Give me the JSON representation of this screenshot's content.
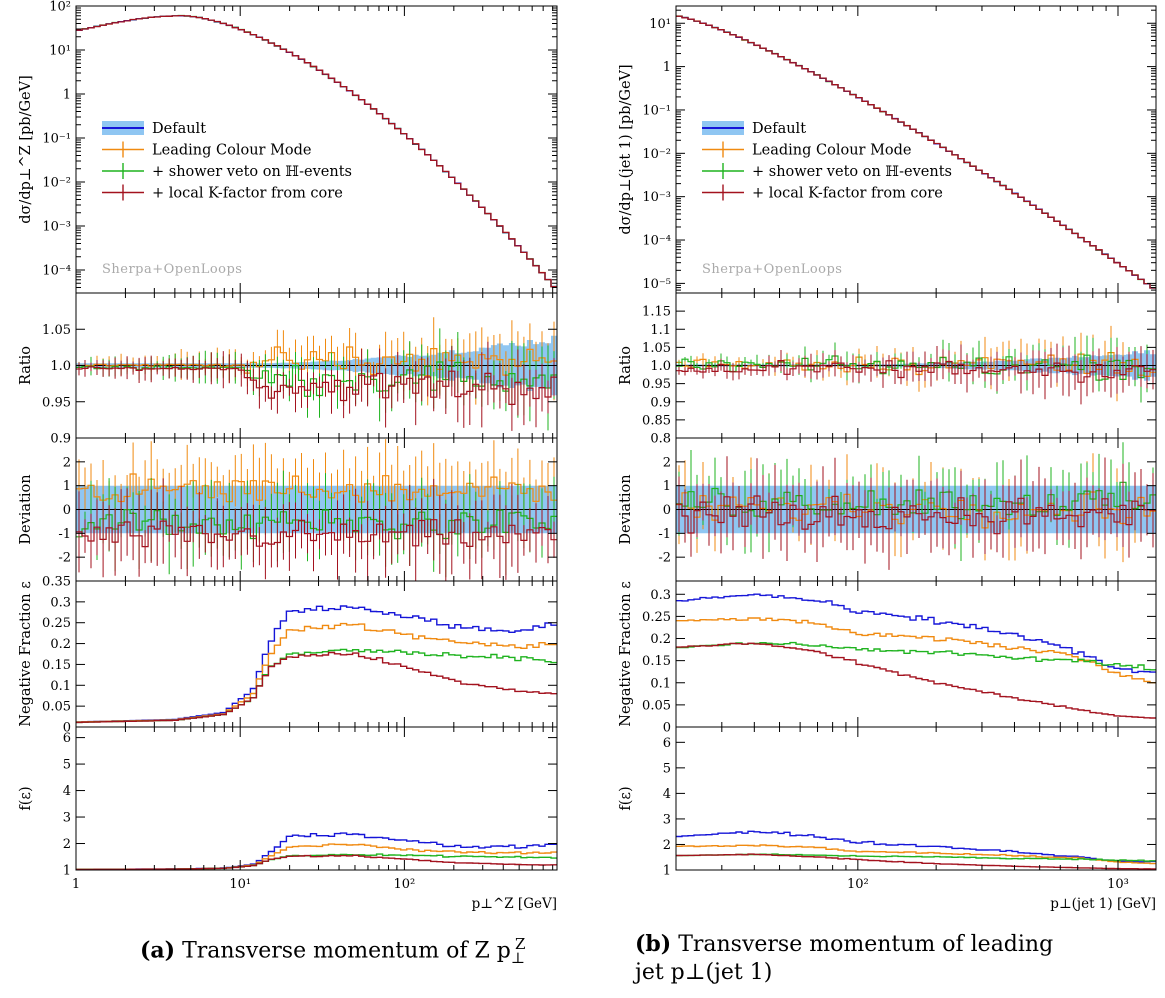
{
  "colors": {
    "default_band": "#8fc6f2",
    "default_line": "#1515d8",
    "leading_colour": "#f08a10",
    "shower_veto": "#1fb31f",
    "local_k": "#a3121e",
    "watermark": "#aaaaaa"
  },
  "legend": [
    {
      "key": "default",
      "label": "Default"
    },
    {
      "key": "lcm",
      "label": "Leading Colour Mode"
    },
    {
      "key": "veto",
      "label": "+ shower veto on ℍ-events"
    },
    {
      "key": "lk",
      "label": "+ local K-factor from core"
    }
  ],
  "watermark": "Sherpa+OpenLoops",
  "captions": {
    "a_tag": "(a)",
    "a_text": "Transverse momentum of Z p",
    "a_sup": "Z",
    "a_sub": "⊥",
    "b_tag": "(b)",
    "b_text1": "Transverse momentum of leading",
    "b_text2": "jet p⊥(jet 1)"
  },
  "chart_data": [
    {
      "id": "a",
      "type": "line",
      "title": "",
      "x_scale": "log",
      "xlim": [
        1,
        850
      ],
      "x_ticks": [
        1,
        10,
        100
      ],
      "x_tick_labels": [
        "1",
        "10¹",
        "10²"
      ],
      "xlabel": "p⊥^Z [GeV]",
      "panels": {
        "main": {
          "ylabel": "dσ/dp⊥^Z [pb/GeV]",
          "y_scale": "log",
          "ylim": [
            3e-05,
            100
          ],
          "ticks": [
            {
              "v": 100,
              "t": "10²"
            },
            {
              "v": 10,
              "t": "10¹"
            },
            {
              "v": 1,
              "t": "1"
            },
            {
              "v": 0.1,
              "t": "10⁻¹"
            },
            {
              "v": 0.01,
              "t": "10⁻²"
            },
            {
              "v": 0.001,
              "t": "10⁻³"
            },
            {
              "v": 0.0001,
              "t": "10⁻⁴"
            }
          ],
          "shape": {
            "kind": "peak",
            "start": 27,
            "peak_x": 4.5,
            "peak": 60,
            "end": 3.5e-05
          }
        },
        "ratio": {
          "ylabel": "Ratio",
          "y_scale": "linear",
          "ylim": [
            0.9,
            1.1
          ],
          "ref": 1.0,
          "ticks": [
            {
              "v": 1.05,
              "t": "1.05"
            },
            {
              "v": 1.0,
              "t": "1.0"
            },
            {
              "v": 0.95,
              "t": "0.95"
            },
            {
              "v": 0.9,
              "t": "0.9"
            }
          ],
          "offsets": {
            "lcm": 0.005,
            "veto": -0.018,
            "lk": -0.028
          },
          "noise": 0.025
        },
        "dev": {
          "ylabel": "Deviation",
          "y_scale": "linear",
          "ylim": [
            -3,
            3
          ],
          "ref": 0,
          "ticks": [
            {
              "v": 2,
              "t": "2"
            },
            {
              "v": 1,
              "t": "1"
            },
            {
              "v": 0,
              "t": "0"
            },
            {
              "v": -1,
              "t": "-1"
            },
            {
              "v": -2,
              "t": "-2"
            }
          ],
          "offsets": {
            "lcm": 0.8,
            "veto": -0.6,
            "lk": -1.1
          },
          "noise": 0.9
        },
        "negfrac": {
          "ylabel": "Negative Fraction ε",
          "y_scale": "linear",
          "ylim": [
            0,
            0.35
          ],
          "ticks": [
            {
              "v": 0.35,
              "t": "0.35"
            },
            {
              "v": 0.3,
              "t": "0.3"
            },
            {
              "v": 0.25,
              "t": "0.25"
            },
            {
              "v": 0.2,
              "t": "0.2"
            },
            {
              "v": 0.15,
              "t": "0.15"
            },
            {
              "v": 0.1,
              "t": "0.1"
            },
            {
              "v": 0.05,
              "t": "0.05"
            },
            {
              "v": 0,
              "t": "0"
            }
          ],
          "series": {
            "default": [
              [
                1,
                0.012
              ],
              [
                4,
                0.018
              ],
              [
                8,
                0.035
              ],
              [
                12,
                0.09
              ],
              [
                15,
                0.2
              ],
              [
                20,
                0.28
              ],
              [
                50,
                0.29
              ],
              [
                100,
                0.265
              ],
              [
                200,
                0.24
              ],
              [
                500,
                0.23
              ],
              [
                800,
                0.25
              ]
            ],
            "lcm": [
              [
                1,
                0.012
              ],
              [
                4,
                0.017
              ],
              [
                8,
                0.032
              ],
              [
                12,
                0.08
              ],
              [
                15,
                0.17
              ],
              [
                20,
                0.235
              ],
              [
                50,
                0.245
              ],
              [
                100,
                0.22
              ],
              [
                200,
                0.205
              ],
              [
                500,
                0.195
              ],
              [
                800,
                0.2
              ]
            ],
            "veto": [
              [
                1,
                0.011
              ],
              [
                4,
                0.016
              ],
              [
                8,
                0.03
              ],
              [
                12,
                0.07
              ],
              [
                15,
                0.14
              ],
              [
                20,
                0.175
              ],
              [
                50,
                0.185
              ],
              [
                100,
                0.18
              ],
              [
                200,
                0.17
              ],
              [
                500,
                0.165
              ],
              [
                800,
                0.16
              ]
            ],
            "lk": [
              [
                1,
                0.011
              ],
              [
                4,
                0.016
              ],
              [
                8,
                0.03
              ],
              [
                12,
                0.07
              ],
              [
                15,
                0.14
              ],
              [
                20,
                0.17
              ],
              [
                50,
                0.175
              ],
              [
                100,
                0.145
              ],
              [
                200,
                0.11
              ],
              [
                500,
                0.085
              ],
              [
                800,
                0.08
              ]
            ]
          }
        },
        "feps": {
          "ylabel": "f(ε)",
          "y_scale": "linear",
          "ylim": [
            1,
            6.4
          ],
          "ticks": [
            {
              "v": 6,
              "t": "6"
            },
            {
              "v": 5,
              "t": "5"
            },
            {
              "v": 4,
              "t": "4"
            },
            {
              "v": 3,
              "t": "3"
            },
            {
              "v": 2,
              "t": "2"
            },
            {
              "v": 1,
              "t": "1"
            }
          ]
        }
      }
    },
    {
      "id": "b",
      "type": "line",
      "title": "",
      "x_scale": "log",
      "xlim": [
        20,
        1400
      ],
      "x_ticks": [
        100,
        1000
      ],
      "x_tick_labels": [
        "10²",
        "10³"
      ],
      "xlabel": "p⊥(jet 1) [GeV]",
      "panels": {
        "main": {
          "ylabel": "dσ/dp⊥(jet 1) [pb/GeV]",
          "y_scale": "log",
          "ylim": [
            6e-06,
            25
          ],
          "ticks": [
            {
              "v": 10,
              "t": "10¹"
            },
            {
              "v": 1,
              "t": "1"
            },
            {
              "v": 0.1,
              "t": "10⁻¹"
            },
            {
              "v": 0.01,
              "t": "10⁻²"
            },
            {
              "v": 0.001,
              "t": "10⁻³"
            },
            {
              "v": 0.0001,
              "t": "10⁻⁴"
            },
            {
              "v": 1e-05,
              "t": "10⁻⁵"
            }
          ],
          "shape": {
            "kind": "fall",
            "start": 15,
            "end": 7e-06
          }
        },
        "ratio": {
          "ylabel": "Ratio",
          "y_scale": "linear",
          "ylim": [
            0.8,
            1.2
          ],
          "ref": 1.0,
          "ticks": [
            {
              "v": 1.15,
              "t": "1.15"
            },
            {
              "v": 1.1,
              "t": "1.1"
            },
            {
              "v": 1.05,
              "t": "1.05"
            },
            {
              "v": 1.0,
              "t": "1.0"
            },
            {
              "v": 0.95,
              "t": "0.95"
            },
            {
              "v": 0.9,
              "t": "0.9"
            },
            {
              "v": 0.85,
              "t": "0.85"
            },
            {
              "v": 0.8,
              "t": "0.8"
            }
          ],
          "offsets": {
            "lcm": 0.005,
            "veto": 0.0,
            "lk": -0.01
          },
          "noise": 0.035
        },
        "dev": {
          "ylabel": "Deviation",
          "y_scale": "linear",
          "ylim": [
            -3,
            3
          ],
          "ref": 0,
          "ticks": [
            {
              "v": 2,
              "t": "2"
            },
            {
              "v": 1,
              "t": "1"
            },
            {
              "v": 0,
              "t": "0"
            },
            {
              "v": -1,
              "t": "-1"
            },
            {
              "v": -2,
              "t": "-2"
            }
          ],
          "offsets": {
            "lcm": 0.1,
            "veto": 0.3,
            "lk": -0.2
          },
          "noise": 1.0
        },
        "negfrac": {
          "ylabel": "Negative Fraction ε",
          "y_scale": "linear",
          "ylim": [
            0,
            0.33
          ],
          "ticks": [
            {
              "v": 0.3,
              "t": "0.3"
            },
            {
              "v": 0.25,
              "t": "0.25"
            },
            {
              "v": 0.2,
              "t": "0.2"
            },
            {
              "v": 0.15,
              "t": "0.15"
            },
            {
              "v": 0.1,
              "t": "0.1"
            },
            {
              "v": 0.05,
              "t": "0.05"
            },
            {
              "v": 0,
              "t": "0"
            }
          ],
          "series": {
            "default": [
              [
                20,
                0.285
              ],
              [
                40,
                0.3
              ],
              [
                70,
                0.285
              ],
              [
                100,
                0.26
              ],
              [
                200,
                0.24
              ],
              [
                400,
                0.21
              ],
              [
                700,
                0.17
              ],
              [
                1000,
                0.13
              ],
              [
                1400,
                0.12
              ]
            ],
            "lcm": [
              [
                20,
                0.24
              ],
              [
                40,
                0.245
              ],
              [
                70,
                0.235
              ],
              [
                100,
                0.21
              ],
              [
                200,
                0.2
              ],
              [
                400,
                0.18
              ],
              [
                700,
                0.16
              ],
              [
                1000,
                0.12
              ],
              [
                1400,
                0.1
              ]
            ],
            "veto": [
              [
                20,
                0.18
              ],
              [
                40,
                0.19
              ],
              [
                70,
                0.185
              ],
              [
                100,
                0.175
              ],
              [
                200,
                0.17
              ],
              [
                400,
                0.155
              ],
              [
                700,
                0.15
              ],
              [
                1000,
                0.14
              ],
              [
                1400,
                0.13
              ]
            ],
            "lk": [
              [
                20,
                0.18
              ],
              [
                40,
                0.19
              ],
              [
                70,
                0.17
              ],
              [
                100,
                0.145
              ],
              [
                200,
                0.1
              ],
              [
                400,
                0.065
              ],
              [
                700,
                0.04
              ],
              [
                1000,
                0.025
              ],
              [
                1400,
                0.02
              ]
            ]
          }
        },
        "feps": {
          "ylabel": "f(ε)",
          "y_scale": "linear",
          "ylim": [
            1,
            6.6
          ],
          "ticks": [
            {
              "v": 6,
              "t": "6"
            },
            {
              "v": 5,
              "t": "5"
            },
            {
              "v": 4,
              "t": "4"
            },
            {
              "v": 3,
              "t": "3"
            },
            {
              "v": 2,
              "t": "2"
            },
            {
              "v": 1,
              "t": "1"
            }
          ]
        }
      }
    }
  ]
}
